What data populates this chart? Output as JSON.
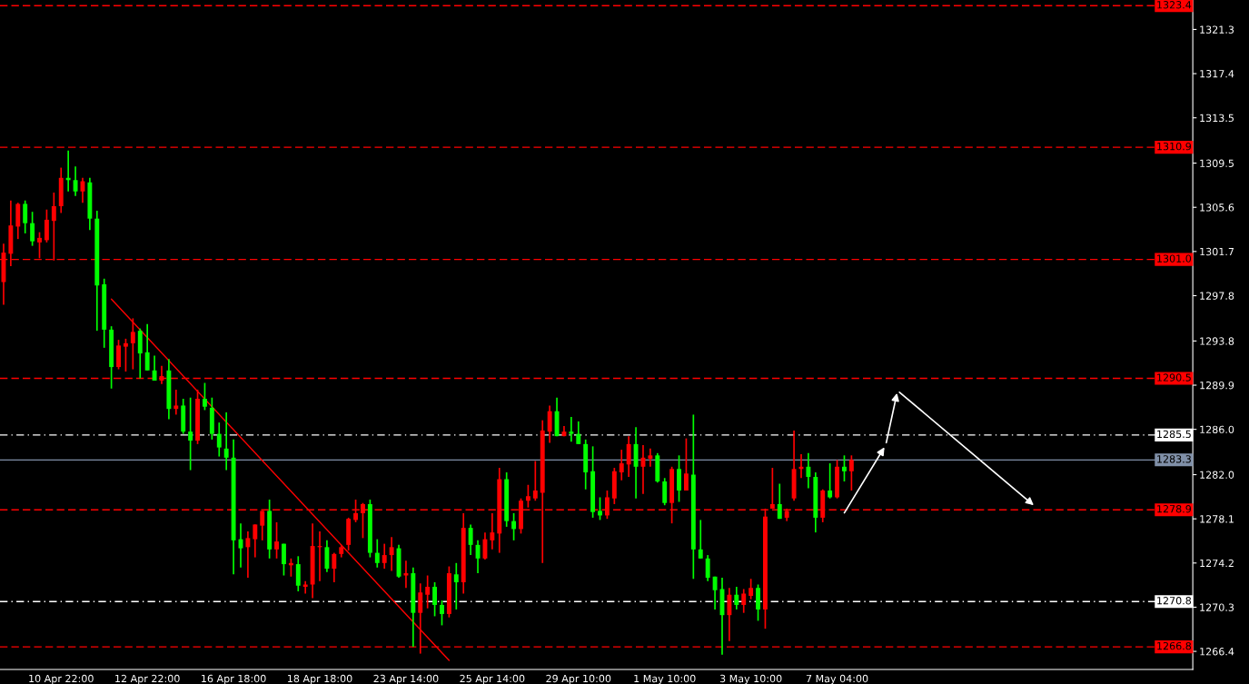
{
  "chart_data": {
    "type": "candlestick",
    "categories": [
      null,
      null,
      null,
      null,
      null,
      null,
      null,
      null,
      "10 Apr 22:00",
      null,
      null,
      null,
      null,
      null,
      null,
      null,
      null,
      null,
      null,
      null,
      "12 Apr 22:00",
      null,
      null,
      null,
      null,
      null,
      null,
      null,
      null,
      null,
      null,
      null,
      "16 Apr 18:00",
      null,
      null,
      null,
      null,
      null,
      null,
      null,
      null,
      null,
      null,
      null,
      "18 Apr 18:00",
      null,
      null,
      null,
      null,
      null,
      null,
      null,
      null,
      null,
      null,
      null,
      "23 Apr 14:00",
      null,
      null,
      null,
      null,
      null,
      null,
      null,
      null,
      null,
      null,
      null,
      "25 Apr 14:00",
      null,
      null,
      null,
      null,
      null,
      null,
      null,
      null,
      null,
      null,
      null,
      "29 Apr 10:00",
      null,
      null,
      null,
      null,
      null,
      null,
      null,
      null,
      null,
      null,
      null,
      "1 May 10:00",
      null,
      null,
      null,
      null,
      null,
      null,
      null,
      null,
      null,
      null,
      null,
      "3 May 10:00",
      null,
      null,
      null,
      null,
      null,
      null,
      null,
      null,
      null,
      null,
      null,
      "7 May 04:00",
      null,
      null,
      null,
      null,
      null,
      null,
      null,
      null,
      null,
      null,
      null,
      null,
      null,
      null,
      null,
      null,
      null,
      null,
      null,
      null,
      null,
      null,
      null,
      null,
      null,
      null,
      null,
      null,
      null,
      null,
      null,
      null,
      null,
      null,
      null,
      null,
      null,
      null,
      null,
      null,
      null,
      null,
      null,
      null,
      null,
      null,
      null,
      null,
      null
    ],
    "ohlc": [
      [
        1299.0,
        1302.4,
        1297.0,
        1301.6
      ],
      [
        1301.5,
        1306.2,
        1300.4,
        1304.0
      ],
      [
        1303.9,
        1306.0,
        1302.8,
        1305.9
      ],
      [
        1305.9,
        1306.2,
        1303.3,
        1304.2
      ],
      [
        1304.2,
        1305.2,
        1302.2,
        1302.6
      ],
      [
        1302.5,
        1303.4,
        1301.1,
        1302.9
      ],
      [
        1302.7,
        1305.4,
        1302.5,
        1304.5
      ],
      [
        1304.4,
        1306.9,
        1300.9,
        1305.7
      ],
      [
        1305.7,
        1309.1,
        1305.1,
        1308.2
      ],
      [
        1308.2,
        1310.6,
        1307.0,
        1308.0
      ],
      [
        1308.0,
        1309.2,
        1306.6,
        1307.0
      ],
      [
        1307.0,
        1308.2,
        1306.0,
        1307.9
      ],
      [
        1307.8,
        1308.2,
        1303.6,
        1304.6
      ],
      [
        1304.6,
        1305.3,
        1294.7,
        1298.7
      ],
      [
        1298.8,
        1299.3,
        1293.2,
        1294.8
      ],
      [
        1294.8,
        1295.1,
        1289.6,
        1291.5
      ],
      [
        1291.5,
        1293.9,
        1291.3,
        1293.4
      ],
      [
        1293.3,
        1294.0,
        1291.1,
        1293.6
      ],
      [
        1293.6,
        1295.8,
        1291.3,
        1294.6
      ],
      [
        1294.7,
        1294.9,
        1290.5,
        1292.7
      ],
      [
        1292.8,
        1295.3,
        1291.2,
        1291.2
      ],
      [
        1291.2,
        1292.5,
        1290.3,
        1290.3
      ],
      [
        1290.3,
        1291.6,
        1290.0,
        1290.7
      ],
      [
        1291.2,
        1292.2,
        1286.9,
        1287.8
      ],
      [
        1287.8,
        1289.5,
        1287.3,
        1288.1
      ],
      [
        1288.1,
        1288.7,
        1285.6,
        1285.8
      ],
      [
        1285.8,
        1288.8,
        1282.4,
        1285.0
      ],
      [
        1285.0,
        1289.5,
        1284.7,
        1288.7
      ],
      [
        1288.7,
        1290.1,
        1287.7,
        1288.0
      ],
      [
        1287.9,
        1288.8,
        1285.1,
        1285.6
      ],
      [
        1285.6,
        1286.6,
        1283.6,
        1284.4
      ],
      [
        1284.3,
        1287.5,
        1282.4,
        1283.5
      ],
      [
        1283.5,
        1285.1,
        1273.2,
        1276.2
      ],
      [
        1276.3,
        1277.7,
        1273.8,
        1275.5
      ],
      [
        1275.6,
        1277.0,
        1272.9,
        1276.4
      ],
      [
        1276.3,
        1277.6,
        1274.7,
        1277.6
      ],
      [
        1277.5,
        1278.8,
        1276.2,
        1278.8
      ],
      [
        1278.8,
        1279.8,
        1274.6,
        1275.4
      ],
      [
        1275.4,
        1277.8,
        1274.6,
        1276.1
      ],
      [
        1275.9,
        1275.9,
        1273.1,
        1274.1
      ],
      [
        1274.0,
        1274.6,
        1273.0,
        1274.2
      ],
      [
        1274.1,
        1274.8,
        1271.7,
        1272.2
      ],
      [
        1272.1,
        1272.6,
        1271.5,
        1272.3
      ],
      [
        1272.3,
        1277.7,
        1271.1,
        1275.7
      ],
      [
        1275.6,
        1277.0,
        1272.6,
        1275.7
      ],
      [
        1275.6,
        1276.2,
        1273.4,
        1273.7
      ],
      [
        1273.7,
        1275.1,
        1272.5,
        1275.0
      ],
      [
        1275.0,
        1275.8,
        1274.7,
        1275.6
      ],
      [
        1275.8,
        1278.2,
        1275.3,
        1278.1
      ],
      [
        1278.0,
        1279.8,
        1277.8,
        1278.6
      ],
      [
        1278.6,
        1279.5,
        1276.4,
        1279.4
      ],
      [
        1279.4,
        1279.8,
        1274.7,
        1275.1
      ],
      [
        1275.1,
        1276.3,
        1273.8,
        1274.2
      ],
      [
        1274.2,
        1275.9,
        1273.7,
        1274.9
      ],
      [
        1274.9,
        1276.5,
        1273.5,
        1275.6
      ],
      [
        1275.5,
        1275.8,
        1272.9,
        1273.0
      ],
      [
        1273.1,
        1274.4,
        1272.0,
        1273.3
      ],
      [
        1273.3,
        1273.8,
        1266.8,
        1269.8
      ],
      [
        1269.8,
        1272.4,
        1266.2,
        1271.6
      ],
      [
        1271.4,
        1273.1,
        1270.2,
        1272.1
      ],
      [
        1272.1,
        1272.5,
        1269.5,
        1270.5
      ],
      [
        1270.5,
        1270.9,
        1268.7,
        1269.7
      ],
      [
        1269.7,
        1273.9,
        1269.4,
        1273.3
      ],
      [
        1273.2,
        1274.2,
        1270.1,
        1272.5
      ],
      [
        1272.5,
        1278.6,
        1271.5,
        1277.3
      ],
      [
        1277.3,
        1277.6,
        1274.9,
        1275.8
      ],
      [
        1275.8,
        1276.2,
        1273.3,
        1274.6
      ],
      [
        1274.6,
        1276.9,
        1274.5,
        1276.3
      ],
      [
        1276.2,
        1278.6,
        1275.4,
        1276.9
      ],
      [
        1276.8,
        1282.6,
        1275.1,
        1281.6
      ],
      [
        1281.6,
        1282.2,
        1277.4,
        1277.9
      ],
      [
        1277.9,
        1278.6,
        1276.2,
        1277.2
      ],
      [
        1277.2,
        1279.9,
        1276.8,
        1279.7
      ],
      [
        1279.7,
        1281.1,
        1279.1,
        1280.1
      ],
      [
        1279.9,
        1283.2,
        1279.7,
        1280.6
      ],
      [
        1280.4,
        1286.8,
        1274.2,
        1285.9
      ],
      [
        1285.8,
        1288.1,
        1284.8,
        1287.6
      ],
      [
        1287.6,
        1288.8,
        1285.4,
        1285.4
      ],
      [
        1285.4,
        1286.3,
        1285.4,
        1285.8
      ],
      [
        1285.8,
        1287.1,
        1284.9,
        1285.6
      ],
      [
        1285.6,
        1286.7,
        1284.7,
        1284.7
      ],
      [
        1284.7,
        1285.1,
        1280.7,
        1282.2
      ],
      [
        1282.3,
        1284.5,
        1278.2,
        1278.7
      ],
      [
        1278.8,
        1280.0,
        1278.0,
        1278.4
      ],
      [
        1278.4,
        1280.6,
        1278.1,
        1280.0
      ],
      [
        1279.9,
        1282.6,
        1279.4,
        1282.3
      ],
      [
        1282.2,
        1284.2,
        1281.5,
        1283.0
      ],
      [
        1282.9,
        1285.4,
        1281.8,
        1284.7
      ],
      [
        1284.7,
        1286.2,
        1279.9,
        1282.7
      ],
      [
        1282.7,
        1284.6,
        1280.3,
        1283.5
      ],
      [
        1283.4,
        1284.3,
        1282.7,
        1283.7
      ],
      [
        1283.7,
        1283.9,
        1281.3,
        1281.4
      ],
      [
        1281.4,
        1281.7,
        1279.3,
        1279.5
      ],
      [
        1279.5,
        1282.7,
        1277.7,
        1282.5
      ],
      [
        1282.5,
        1283.7,
        1279.6,
        1280.6
      ],
      [
        1280.6,
        1285.2,
        1280.6,
        1282.1
      ],
      [
        1282.0,
        1287.3,
        1272.8,
        1275.4
      ],
      [
        1275.4,
        1278.0,
        1274.6,
        1274.6
      ],
      [
        1274.6,
        1274.9,
        1272.6,
        1272.9
      ],
      [
        1273.0,
        1273.0,
        1270.1,
        1271.8
      ],
      [
        1271.9,
        1272.9,
        1266.1,
        1269.6
      ],
      [
        1269.6,
        1272.0,
        1267.3,
        1271.4
      ],
      [
        1271.4,
        1272.1,
        1270.1,
        1270.5
      ],
      [
        1270.5,
        1271.9,
        1269.8,
        1271.5
      ],
      [
        1271.3,
        1272.8,
        1271.0,
        1272.0
      ],
      [
        1272.0,
        1272.3,
        1269.1,
        1270.1
      ],
      [
        1270.1,
        1279.0,
        1268.4,
        1278.3
      ],
      [
        1279.0,
        1282.6,
        1279.0,
        1279.4
      ],
      [
        1279.4,
        1281.2,
        1278.1,
        1278.1
      ],
      [
        1278.2,
        1279.0,
        1277.9,
        1278.8
      ],
      [
        1279.9,
        1285.9,
        1279.7,
        1282.5
      ],
      [
        1282.5,
        1283.8,
        1281.7,
        1282.7
      ],
      [
        1282.7,
        1283.9,
        1280.8,
        1281.8
      ],
      [
        1281.8,
        1282.2,
        1276.9,
        1278.2
      ],
      [
        1278.2,
        1280.7,
        1277.8,
        1280.6
      ],
      [
        1280.6,
        1283.0,
        1279.9,
        1280.0
      ],
      [
        1280.0,
        1283.3,
        1279.9,
        1282.7
      ],
      [
        1282.7,
        1283.7,
        1281.4,
        1282.3
      ],
      [
        1282.3,
        1283.7,
        1280.6,
        1283.3
      ],
      null,
      null,
      null,
      null,
      null,
      null,
      null,
      null,
      null,
      null,
      null,
      null,
      null,
      null,
      null,
      null,
      null,
      null,
      null,
      null,
      null,
      null,
      null,
      null,
      null,
      null,
      null,
      null,
      null,
      null,
      null,
      null,
      null,
      null,
      null,
      null,
      null,
      null,
      null,
      null,
      null,
      null,
      null,
      null,
      null,
      null,
      null
    ],
    "colors": [
      "#ff0000",
      "#ff0000",
      "#ff0000",
      "#00ff00",
      "#00ff00",
      "#ff0000",
      "#ff0000",
      "#ff0000",
      "#ff0000",
      "#00ff00",
      "#00ff00",
      "#ff0000",
      "#00ff00",
      "#00ff00",
      "#00ff00",
      "#00ff00",
      "#ff0000",
      "#ff0000",
      "#ff0000",
      "#00ff00",
      "#00ff00",
      "#00ff00",
      "#ff0000",
      "#00ff00",
      "#ff0000",
      "#00ff00",
      "#00ff00",
      "#ff0000",
      "#00ff00",
      "#00ff00",
      "#00ff00",
      "#00ff00",
      "#00ff00",
      "#00ff00",
      "#ff0000",
      "#ff0000",
      "#ff0000",
      "#00ff00",
      "#ff0000",
      "#00ff00",
      "#ff0000",
      "#00ff00",
      "#ff0000",
      "#ff0000",
      "#ff0000",
      "#00ff00",
      "#ff0000",
      "#ff0000",
      "#ff0000",
      "#ff0000",
      "#ff0000",
      "#00ff00",
      "#00ff00",
      "#ff0000",
      "#ff0000",
      "#00ff00",
      "#ff0000",
      "#00ff00",
      "#ff0000",
      "#ff0000",
      "#00ff00",
      "#00ff00",
      "#ff0000",
      "#00ff00",
      "#ff0000",
      "#00ff00",
      "#00ff00",
      "#ff0000",
      "#ff0000",
      "#ff0000",
      "#00ff00",
      "#00ff00",
      "#ff0000",
      "#ff0000",
      "#ff0000",
      "#ff0000",
      "#ff0000",
      "#00ff00",
      "#ff0000",
      "#00ff00",
      "#00ff00",
      "#00ff00",
      "#00ff00",
      "#00ff00",
      "#ff0000",
      "#ff0000",
      "#ff0000",
      "#ff0000",
      "#00ff00",
      "#ff0000",
      "#ff0000",
      "#00ff00",
      "#00ff00",
      "#ff0000",
      "#00ff00",
      "#ff0000",
      "#00ff00",
      "#00ff00",
      "#00ff00",
      "#00ff00",
      "#00ff00",
      "#ff0000",
      "#00ff00",
      "#ff0000",
      "#ff0000",
      "#00ff00",
      "#ff0000",
      "#ff0000",
      "#00ff00",
      "#ff0000",
      "#ff0000",
      "#ff0000",
      "#00ff00",
      "#00ff00",
      "#ff0000",
      "#00ff00",
      "#ff0000",
      "#00ff00",
      "#ff0000",
      null,
      null,
      null,
      null,
      null,
      null,
      null,
      null,
      null,
      null,
      null,
      null,
      null,
      null,
      null,
      null,
      null,
      null,
      null,
      null,
      null,
      null,
      null,
      null,
      null,
      null,
      null,
      null,
      null,
      null,
      null,
      null,
      null,
      null,
      null,
      null,
      null,
      null,
      null,
      null,
      null,
      null,
      null,
      null,
      null,
      null,
      null
    ],
    "series": [
      {
        "type": "line",
        "color": "#ff0000",
        "values": [
          null,
          null,
          null,
          null,
          null,
          null,
          null,
          null,
          null,
          null,
          null,
          null,
          null,
          null,
          null,
          1297.5,
          null,
          null,
          null,
          null,
          null,
          null,
          null,
          null,
          null,
          null,
          null,
          null,
          null,
          null,
          null,
          null,
          null,
          null,
          null,
          null,
          null,
          null,
          null,
          null,
          null,
          null,
          null,
          null,
          null,
          null,
          null,
          null,
          null,
          null,
          null,
          null,
          null,
          null,
          null,
          null,
          null,
          null,
          null,
          null,
          null,
          null,
          1265.6,
          null,
          null,
          null,
          null,
          null,
          null,
          null,
          null,
          null,
          null,
          null,
          null,
          null,
          null,
          null,
          null,
          null,
          null,
          null,
          null,
          null,
          null,
          null,
          null,
          null,
          null,
          null,
          null,
          null,
          null,
          null,
          null,
          null,
          null,
          null,
          null,
          null,
          null,
          null,
          null,
          null,
          null,
          null,
          null,
          null,
          null,
          null,
          null,
          null,
          null,
          null,
          null,
          null,
          null,
          null,
          null,
          null,
          null,
          null,
          null,
          null,
          null,
          null,
          null,
          null,
          null,
          null,
          null,
          null,
          null,
          null,
          null,
          null,
          null,
          null,
          null,
          null,
          null,
          null,
          null,
          null,
          null,
          null,
          null,
          null,
          null,
          null,
          null,
          null,
          null,
          null,
          null,
          null,
          null,
          null,
          null,
          null,
          null,
          null,
          null,
          null,
          null,
          null
        ]
      }
    ],
    "ylim": [
      1264.8,
      1323.9
    ],
    "yticks": [
      1266.4,
      1270.3,
      1274.2,
      1278.1,
      {
        "value": 1282.0,
        "label": "1282.0"
      },
      {
        "value": 1286.0,
        "label": "1286.0"
      },
      1289.9,
      1293.8,
      1297.8,
      1301.7,
      1305.6,
      1309.5,
      1313.5,
      1317.4,
      1321.3
    ],
    "ref_lines": [
      {
        "axis": "y",
        "value": 1323.4,
        "label": "1323.4",
        "color": "#ff0000",
        "line_style": "dashed"
      },
      {
        "axis": "y",
        "value": 1310.9,
        "label": "1310.9",
        "color": "#ff0000",
        "line_style": "dashed"
      },
      {
        "axis": "y",
        "value": 1301.0,
        "label": "1301.0",
        "color": "#ff0000",
        "line_style": "dashed"
      },
      {
        "axis": "y",
        "value": 1290.5,
        "label": "1290.5",
        "color": "#ff0000",
        "line_style": "dashed"
      },
      {
        "axis": "y",
        "value": 1285.5,
        "label": "1285.5",
        "color": "#ffffff",
        "line_style": "dotted"
      },
      {
        "axis": "y",
        "value": 1283.3,
        "label": "1283.3",
        "color": "#8090a8",
        "line_style": "solid"
      },
      {
        "axis": "y",
        "value": 1278.9,
        "label": "1278.9",
        "color": "#ff0000",
        "line_style": "dashed"
      },
      {
        "axis": "y",
        "value": 1270.8,
        "label": "1270.8",
        "color": "#ffffff",
        "line_style": "dotted"
      },
      {
        "axis": "y",
        "value": 1266.8,
        "label": "1266.8",
        "color": "#ff0000",
        "line_style": "dashed"
      }
    ]
  }
}
